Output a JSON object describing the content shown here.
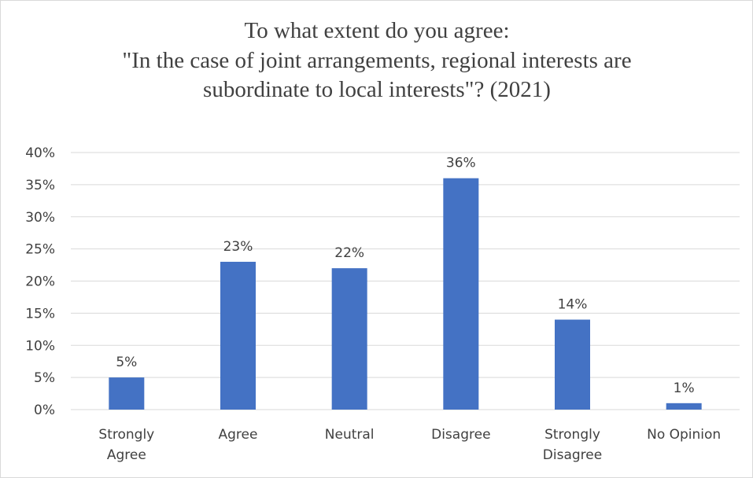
{
  "chart_data": {
    "type": "bar",
    "title_lines": [
      "To what extent do you agree:",
      "\"In the case of joint arrangements, regional interests are",
      "subordinate to local interests\"? (2021)"
    ],
    "categories": [
      [
        "Strongly",
        "Agree"
      ],
      [
        "Agree"
      ],
      [
        "Neutral"
      ],
      [
        "Disagree"
      ],
      [
        "Strongly",
        "Disagree"
      ],
      [
        "No Opinion"
      ]
    ],
    "values": [
      5,
      23,
      22,
      36,
      14,
      1
    ],
    "data_labels": [
      "5%",
      "23%",
      "22%",
      "36%",
      "14%",
      "1%"
    ],
    "y_ticks": [
      0,
      5,
      10,
      15,
      20,
      25,
      30,
      35,
      40
    ],
    "y_tick_labels": [
      "0%",
      "5%",
      "10%",
      "15%",
      "20%",
      "25%",
      "30%",
      "35%",
      "40%"
    ],
    "ylim": [
      0,
      40
    ],
    "grid": true,
    "legend": "none",
    "colors": {
      "bar": "#4472c4",
      "grid": "#d9d9d9",
      "text": "#404040"
    }
  }
}
